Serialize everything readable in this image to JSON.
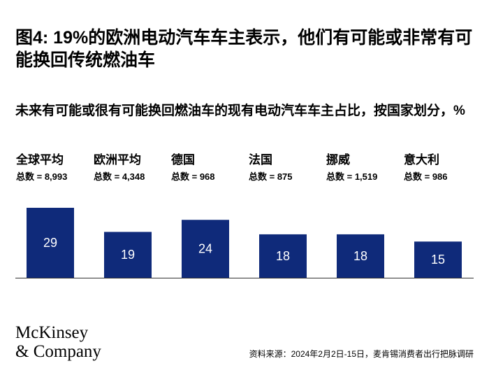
{
  "title": "图4: 19%的欧洲电动汽车车主表示，他们有可能或非常有可能换回传统燃油车",
  "subtitle": "未来有可能或很有可能换回燃油车的现有电动汽车车主占比，按国家划分，%",
  "logo": {
    "line1": "McKinsey",
    "line2": "& Company"
  },
  "source": "资料来源：2024年2月2日-15日，麦肯锡消费者出行把脉调研",
  "colors": {
    "bar": "#0f2a7a",
    "axis": "#333333"
  },
  "chart_data": {
    "type": "bar",
    "title": "图4: 19%的欧洲电动汽车车主表示，他们有可能或非常有可能换回传统燃油车",
    "subtitle": "未来有可能或很有可能换回燃油车的现有电动汽车车主占比，按国家划分，%",
    "categories": [
      "全球平均",
      "欧洲平均",
      "德国",
      "法国",
      "挪威",
      "意大利"
    ],
    "sample_sizes": [
      "总数 = 8,993",
      "总数 = 4,348",
      "总数 = 968",
      "总数 = 875",
      "总数 = 1,519",
      "总数 = 986"
    ],
    "values": [
      29,
      19,
      24,
      18,
      18,
      15
    ],
    "ylim": [
      0,
      29
    ],
    "grid": false,
    "legend": "none"
  }
}
